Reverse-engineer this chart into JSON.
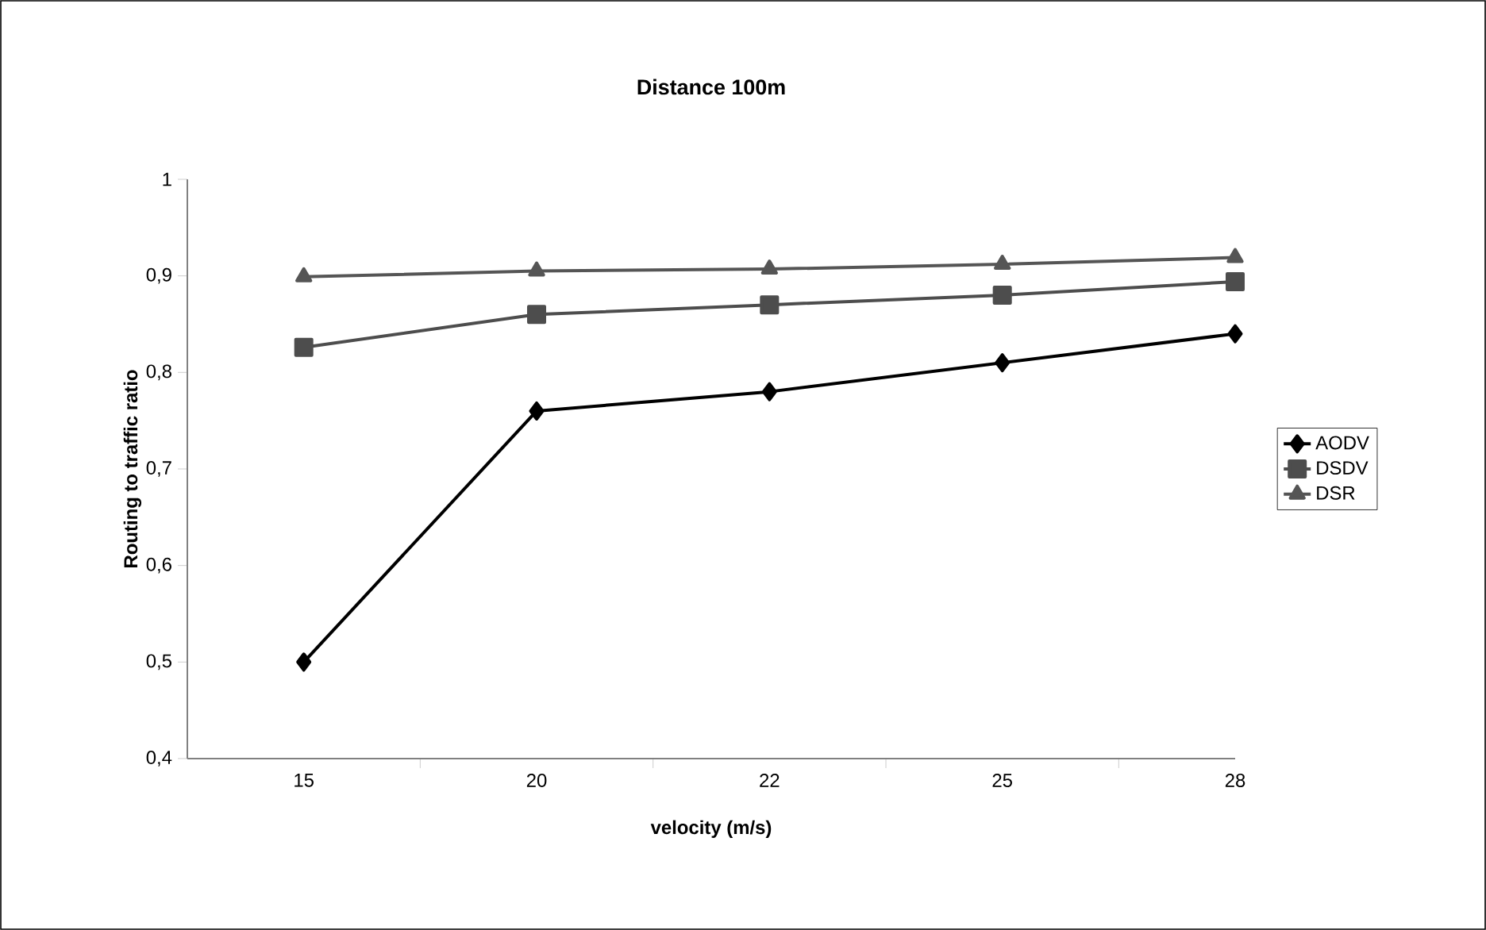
{
  "chart_data": {
    "type": "line",
    "title": "Distance 100m",
    "xlabel": "velocity (m/s)",
    "ylabel": "Routing to traffic ratio",
    "categories": [
      "15",
      "20",
      "22",
      "25",
      "28"
    ],
    "series": [
      {
        "name": "AODV",
        "color": "#000000",
        "marker": "diamond",
        "values": [
          0.5,
          0.76,
          0.78,
          0.81,
          0.84
        ]
      },
      {
        "name": "DSDV",
        "color": "#4d4d4d",
        "marker": "square",
        "values": [
          0.826,
          0.86,
          0.87,
          0.88,
          0.894
        ]
      },
      {
        "name": "DSR",
        "color": "#555555",
        "marker": "triangle",
        "values": [
          0.899,
          0.905,
          0.907,
          0.912,
          0.919
        ]
      }
    ],
    "ylim": [
      0.4,
      1
    ],
    "yticks": [
      {
        "value": 0.4,
        "label": "0,4"
      },
      {
        "value": 0.5,
        "label": "0,5"
      },
      {
        "value": 0.6,
        "label": "0,6"
      },
      {
        "value": 0.7,
        "label": "0,7"
      },
      {
        "value": 0.8,
        "label": "0,8"
      },
      {
        "value": 0.9,
        "label": "0,9"
      },
      {
        "value": 1,
        "label": "1"
      }
    ],
    "grid": false,
    "legend": "right",
    "line_style": "solid"
  }
}
